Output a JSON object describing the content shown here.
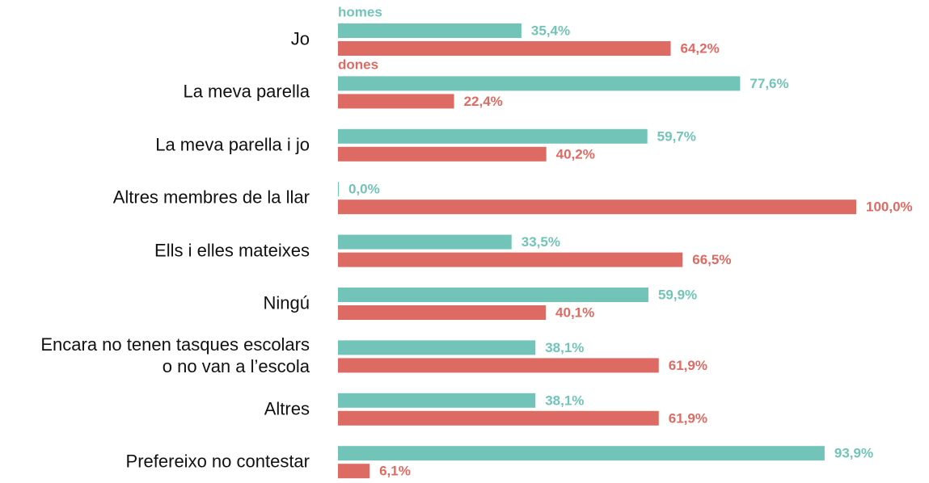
{
  "chart_data": {
    "type": "bar",
    "orientation": "horizontal",
    "categories": [
      "Jo",
      "La meva parella",
      "La meva parella i jo",
      "Altres membres de la llar",
      "Ells i elles mateixes",
      "Ningú",
      "Encara no tenen tasques escolars\no no van a l’escola",
      "Altres",
      "Prefereixo no contestar"
    ],
    "series": [
      {
        "name": "homes",
        "color": "#72c4b9",
        "values": [
          35.4,
          77.6,
          59.7,
          0.0,
          33.5,
          59.9,
          38.1,
          38.1,
          93.9
        ],
        "value_labels": [
          "35,4%",
          "77,6%",
          "59,7%",
          "0,0%",
          "33,5%",
          "59,9%",
          "38,1%",
          "38,1%",
          "93,9%"
        ]
      },
      {
        "name": "dones",
        "color": "#de6b63",
        "values": [
          64.2,
          22.4,
          40.2,
          100.0,
          66.5,
          40.1,
          61.9,
          61.9,
          6.1
        ],
        "value_labels": [
          "64,2%",
          "22,4%",
          "40,2%",
          "100,0%",
          "66,5%",
          "40,1%",
          "61,9%",
          "61,9%",
          "6,1%"
        ]
      }
    ]
  }
}
